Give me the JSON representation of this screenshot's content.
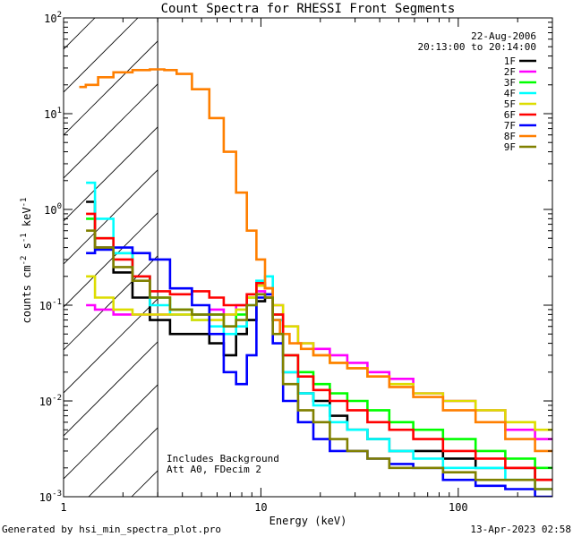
{
  "chart_data": {
    "type": "line",
    "title": "Count Spectra for RHESSI Front Segments",
    "xlabel": "Energy (keV)",
    "ylabel": "counts cm-2 s-1 keV-1",
    "xscale": "log",
    "yscale": "log",
    "xlim": [
      1,
      300
    ],
    "ylim": [
      0.001,
      100
    ],
    "x_ticks": [
      {
        "value": 1,
        "label": "1"
      },
      {
        "value": 10,
        "label": "10"
      },
      {
        "value": 100,
        "label": "100"
      }
    ],
    "y_ticks": [
      {
        "value": 0.001,
        "base": "10",
        "exp": "-3"
      },
      {
        "value": 0.01,
        "base": "10",
        "exp": "-2"
      },
      {
        "value": 0.1,
        "base": "10",
        "exp": "-1"
      },
      {
        "value": 1,
        "base": "10",
        "exp": "0"
      },
      {
        "value": 10,
        "base": "10",
        "exp": "1"
      },
      {
        "value": 100,
        "base": "10",
        "exp": "2"
      }
    ],
    "date": "22-Aug-2006",
    "time_range": "20:13:00 to 20:14:00",
    "hatched_below_keV": 3,
    "annotations": [
      "Includes Background",
      "Att A0, FDecim 2"
    ],
    "series": [
      {
        "name": "1F",
        "color": "#000000",
        "points": [
          [
            1.3,
            1.2
          ],
          [
            1.6,
            0.4
          ],
          [
            2,
            0.22
          ],
          [
            2.5,
            0.12
          ],
          [
            3,
            0.07
          ],
          [
            4,
            0.05
          ],
          [
            5,
            0.05
          ],
          [
            6,
            0.04
          ],
          [
            7,
            0.03
          ],
          [
            8,
            0.05
          ],
          [
            9,
            0.07
          ],
          [
            10,
            0.11
          ],
          [
            11,
            0.12
          ],
          [
            12,
            0.07
          ],
          [
            14,
            0.02
          ],
          [
            17,
            0.012
          ],
          [
            20,
            0.01
          ],
          [
            25,
            0.007
          ],
          [
            30,
            0.005
          ],
          [
            40,
            0.004
          ],
          [
            50,
            0.003
          ],
          [
            70,
            0.003
          ],
          [
            100,
            0.0025
          ],
          [
            150,
            0.002
          ],
          [
            200,
            0.002
          ],
          [
            300,
            0.0015
          ]
        ]
      },
      {
        "name": "2F",
        "color": "#ff00ff",
        "points": [
          [
            1.3,
            0.1
          ],
          [
            1.6,
            0.09
          ],
          [
            2,
            0.08
          ],
          [
            2.5,
            0.08
          ],
          [
            3,
            0.08
          ],
          [
            4,
            0.08
          ],
          [
            5,
            0.08
          ],
          [
            6,
            0.09
          ],
          [
            7,
            0.08
          ],
          [
            8,
            0.1
          ],
          [
            9,
            0.13
          ],
          [
            10,
            0.14
          ],
          [
            11,
            0.13
          ],
          [
            12,
            0.1
          ],
          [
            14,
            0.06
          ],
          [
            17,
            0.04
          ],
          [
            20,
            0.035
          ],
          [
            25,
            0.03
          ],
          [
            30,
            0.025
          ],
          [
            40,
            0.02
          ],
          [
            50,
            0.017
          ],
          [
            70,
            0.012
          ],
          [
            100,
            0.01
          ],
          [
            150,
            0.008
          ],
          [
            200,
            0.005
          ],
          [
            300,
            0.004
          ]
        ]
      },
      {
        "name": "3F",
        "color": "#00ff00",
        "points": [
          [
            1.3,
            0.8
          ],
          [
            1.6,
            0.5
          ],
          [
            2,
            0.35
          ],
          [
            2.5,
            0.2
          ],
          [
            3,
            0.12
          ],
          [
            4,
            0.09
          ],
          [
            5,
            0.08
          ],
          [
            6,
            0.08
          ],
          [
            7,
            0.06
          ],
          [
            8,
            0.08
          ],
          [
            9,
            0.12
          ],
          [
            10,
            0.16
          ],
          [
            11,
            0.15
          ],
          [
            12,
            0.08
          ],
          [
            14,
            0.03
          ],
          [
            17,
            0.02
          ],
          [
            20,
            0.015
          ],
          [
            25,
            0.012
          ],
          [
            30,
            0.01
          ],
          [
            40,
            0.008
          ],
          [
            50,
            0.006
          ],
          [
            70,
            0.005
          ],
          [
            100,
            0.004
          ],
          [
            150,
            0.003
          ],
          [
            200,
            0.0025
          ],
          [
            300,
            0.002
          ]
        ]
      },
      {
        "name": "4F",
        "color": "#00ffff",
        "points": [
          [
            1.3,
            1.9
          ],
          [
            1.6,
            0.8
          ],
          [
            2,
            0.35
          ],
          [
            2.5,
            0.2
          ],
          [
            3,
            0.1
          ],
          [
            4,
            0.08
          ],
          [
            5,
            0.07
          ],
          [
            6,
            0.06
          ],
          [
            7,
            0.05
          ],
          [
            8,
            0.06
          ],
          [
            9,
            0.1
          ],
          [
            10,
            0.18
          ],
          [
            11,
            0.2
          ],
          [
            12,
            0.07
          ],
          [
            14,
            0.02
          ],
          [
            17,
            0.012
          ],
          [
            20,
            0.009
          ],
          [
            25,
            0.006
          ],
          [
            30,
            0.005
          ],
          [
            40,
            0.004
          ],
          [
            50,
            0.003
          ],
          [
            70,
            0.0025
          ],
          [
            100,
            0.002
          ],
          [
            150,
            0.002
          ],
          [
            200,
            0.0015
          ],
          [
            300,
            0.0012
          ]
        ]
      },
      {
        "name": "5F",
        "color": "#dddd00",
        "points": [
          [
            1.3,
            0.2
          ],
          [
            1.6,
            0.12
          ],
          [
            2,
            0.09
          ],
          [
            2.5,
            0.08
          ],
          [
            3,
            0.08
          ],
          [
            4,
            0.08
          ],
          [
            5,
            0.07
          ],
          [
            6,
            0.07
          ],
          [
            7,
            0.08
          ],
          [
            8,
            0.09
          ],
          [
            9,
            0.12
          ],
          [
            10,
            0.16
          ],
          [
            11,
            0.15
          ],
          [
            12,
            0.1
          ],
          [
            14,
            0.06
          ],
          [
            17,
            0.04
          ],
          [
            20,
            0.03
          ],
          [
            25,
            0.025
          ],
          [
            30,
            0.022
          ],
          [
            40,
            0.018
          ],
          [
            50,
            0.015
          ],
          [
            70,
            0.012
          ],
          [
            100,
            0.01
          ],
          [
            150,
            0.008
          ],
          [
            200,
            0.006
          ],
          [
            300,
            0.005
          ]
        ]
      },
      {
        "name": "6F",
        "color": "#ff0000",
        "points": [
          [
            1.3,
            0.9
          ],
          [
            1.6,
            0.5
          ],
          [
            2,
            0.3
          ],
          [
            2.5,
            0.2
          ],
          [
            3,
            0.14
          ],
          [
            4,
            0.13
          ],
          [
            5,
            0.14
          ],
          [
            6,
            0.12
          ],
          [
            7,
            0.1
          ],
          [
            8,
            0.1
          ],
          [
            9,
            0.13
          ],
          [
            10,
            0.17
          ],
          [
            11,
            0.15
          ],
          [
            12,
            0.08
          ],
          [
            14,
            0.03
          ],
          [
            17,
            0.018
          ],
          [
            20,
            0.013
          ],
          [
            25,
            0.01
          ],
          [
            30,
            0.008
          ],
          [
            40,
            0.006
          ],
          [
            50,
            0.005
          ],
          [
            70,
            0.004
          ],
          [
            100,
            0.003
          ],
          [
            150,
            0.0025
          ],
          [
            200,
            0.002
          ],
          [
            300,
            0.0015
          ]
        ]
      },
      {
        "name": "7F",
        "color": "#0000ff",
        "points": [
          [
            1.3,
            0.35
          ],
          [
            1.6,
            0.38
          ],
          [
            2,
            0.4
          ],
          [
            2.5,
            0.35
          ],
          [
            3,
            0.3
          ],
          [
            4,
            0.15
          ],
          [
            5,
            0.1
          ],
          [
            6,
            0.05
          ],
          [
            7,
            0.02
          ],
          [
            8,
            0.015
          ],
          [
            9,
            0.03
          ],
          [
            10,
            0.12
          ],
          [
            11,
            0.13
          ],
          [
            12,
            0.04
          ],
          [
            14,
            0.01
          ],
          [
            17,
            0.006
          ],
          [
            20,
            0.004
          ],
          [
            25,
            0.003
          ],
          [
            30,
            0.003
          ],
          [
            40,
            0.0025
          ],
          [
            50,
            0.0022
          ],
          [
            70,
            0.002
          ],
          [
            100,
            0.0015
          ],
          [
            150,
            0.0013
          ],
          [
            200,
            0.0012
          ],
          [
            300,
            0.001
          ]
        ]
      },
      {
        "name": "8F",
        "color": "#ff7f00",
        "points": [
          [
            1.2,
            19
          ],
          [
            1.4,
            20
          ],
          [
            1.6,
            24
          ],
          [
            2,
            27
          ],
          [
            2.5,
            28.5
          ],
          [
            3,
            29
          ],
          [
            3.5,
            28.5
          ],
          [
            4,
            26
          ],
          [
            5,
            18
          ],
          [
            6,
            9
          ],
          [
            7,
            4
          ],
          [
            8,
            1.5
          ],
          [
            9,
            0.6
          ],
          [
            10,
            0.3
          ],
          [
            11,
            0.15
          ],
          [
            12,
            0.07
          ],
          [
            13,
            0.05
          ],
          [
            15,
            0.04
          ],
          [
            17,
            0.035
          ],
          [
            20,
            0.03
          ],
          [
            25,
            0.025
          ],
          [
            30,
            0.022
          ],
          [
            40,
            0.018
          ],
          [
            50,
            0.014
          ],
          [
            70,
            0.011
          ],
          [
            100,
            0.008
          ],
          [
            150,
            0.006
          ],
          [
            200,
            0.004
          ],
          [
            300,
            0.003
          ]
        ]
      },
      {
        "name": "9F",
        "color": "#808000",
        "points": [
          [
            1.3,
            0.6
          ],
          [
            1.6,
            0.4
          ],
          [
            2,
            0.25
          ],
          [
            2.5,
            0.18
          ],
          [
            3,
            0.12
          ],
          [
            4,
            0.09
          ],
          [
            5,
            0.08
          ],
          [
            6,
            0.08
          ],
          [
            7,
            0.06
          ],
          [
            8,
            0.07
          ],
          [
            9,
            0.1
          ],
          [
            10,
            0.13
          ],
          [
            11,
            0.12
          ],
          [
            12,
            0.05
          ],
          [
            14,
            0.015
          ],
          [
            17,
            0.008
          ],
          [
            20,
            0.006
          ],
          [
            25,
            0.004
          ],
          [
            30,
            0.003
          ],
          [
            40,
            0.0025
          ],
          [
            50,
            0.002
          ],
          [
            70,
            0.002
          ],
          [
            100,
            0.0018
          ],
          [
            150,
            0.0015
          ],
          [
            200,
            0.0015
          ],
          [
            300,
            0.0012
          ]
        ]
      }
    ]
  },
  "footer": {
    "generated_by": "Generated by hsi_min_spectra_plot.pro",
    "timestamp": "13-Apr-2023 02:58"
  }
}
